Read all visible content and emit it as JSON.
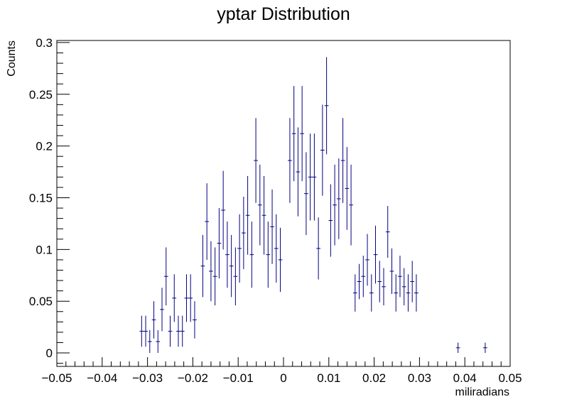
{
  "chart_data": {
    "type": "scatter",
    "title": "yptar Distribution",
    "xlabel": "miliradians",
    "ylabel": "Counts",
    "xlim": [
      -0.05,
      0.05
    ],
    "ylim": [
      -0.013,
      0.302
    ],
    "x_ticks": [
      -0.05,
      -0.04,
      -0.03,
      -0.02,
      -0.01,
      0,
      0.01,
      0.02,
      0.03,
      0.04,
      0.05
    ],
    "x_tick_labels": [
      "−0.05",
      "−0.04",
      "−0.03",
      "−0.02",
      "−0.01",
      "0",
      "0.01",
      "0.02",
      "0.03",
      "0.04",
      "0.05"
    ],
    "y_ticks": [
      0,
      0.05,
      0.1,
      0.15,
      0.2,
      0.25,
      0.3
    ],
    "y_tick_labels": [
      "0",
      "0.05",
      "0.1",
      "0.15",
      "0.2",
      "0.25",
      "0.3"
    ],
    "grid": false,
    "marker_color": "#000080",
    "bin_half_width": 0.00045,
    "series": [
      {
        "points": [
          {
            "x": -0.0313,
            "y": 0.021,
            "err": 0.015
          },
          {
            "x": -0.0304,
            "y": 0.021,
            "err": 0.015
          },
          {
            "x": -0.0295,
            "y": 0.011,
            "err": 0.011
          },
          {
            "x": -0.0286,
            "y": 0.032,
            "err": 0.018
          },
          {
            "x": -0.0277,
            "y": 0.011,
            "err": 0.011
          },
          {
            "x": -0.0268,
            "y": 0.042,
            "err": 0.021
          },
          {
            "x": -0.0259,
            "y": 0.074,
            "err": 0.028
          },
          {
            "x": -0.025,
            "y": 0.021,
            "err": 0.015
          },
          {
            "x": -0.0241,
            "y": 0.053,
            "err": 0.023
          },
          {
            "x": -0.0232,
            "y": 0.021,
            "err": 0.015
          },
          {
            "x": -0.0223,
            "y": 0.021,
            "err": 0.015
          },
          {
            "x": -0.0214,
            "y": 0.053,
            "err": 0.023
          },
          {
            "x": -0.0205,
            "y": 0.053,
            "err": 0.023
          },
          {
            "x": -0.0196,
            "y": 0.032,
            "err": 0.018
          },
          {
            "x": -0.0178,
            "y": 0.084,
            "err": 0.03
          },
          {
            "x": -0.0169,
            "y": 0.127,
            "err": 0.037
          },
          {
            "x": -0.016,
            "y": 0.079,
            "err": 0.029
          },
          {
            "x": -0.0151,
            "y": 0.074,
            "err": 0.028
          },
          {
            "x": -0.0142,
            "y": 0.106,
            "err": 0.034
          },
          {
            "x": -0.0133,
            "y": 0.138,
            "err": 0.038
          },
          {
            "x": -0.0124,
            "y": 0.095,
            "err": 0.032
          },
          {
            "x": -0.0115,
            "y": 0.084,
            "err": 0.03
          },
          {
            "x": -0.0106,
            "y": 0.074,
            "err": 0.028
          },
          {
            "x": -0.0097,
            "y": 0.101,
            "err": 0.033
          },
          {
            "x": -0.0088,
            "y": 0.116,
            "err": 0.035
          },
          {
            "x": -0.0079,
            "y": 0.133,
            "err": 0.038
          },
          {
            "x": -0.007,
            "y": 0.095,
            "err": 0.032
          },
          {
            "x": -0.0061,
            "y": 0.186,
            "err": 0.041
          },
          {
            "x": -0.0052,
            "y": 0.143,
            "err": 0.039
          },
          {
            "x": -0.0043,
            "y": 0.133,
            "err": 0.038
          },
          {
            "x": -0.0034,
            "y": 0.095,
            "err": 0.032
          },
          {
            "x": -0.0025,
            "y": 0.122,
            "err": 0.036
          },
          {
            "x": -0.0016,
            "y": 0.101,
            "err": 0.033
          },
          {
            "x": -0.0007,
            "y": 0.09,
            "err": 0.031
          },
          {
            "x": 0.0014,
            "y": 0.186,
            "err": 0.041
          },
          {
            "x": 0.0023,
            "y": 0.212,
            "err": 0.046
          },
          {
            "x": 0.0032,
            "y": 0.175,
            "err": 0.043
          },
          {
            "x": 0.0041,
            "y": 0.212,
            "err": 0.046
          },
          {
            "x": 0.005,
            "y": 0.154,
            "err": 0.04
          },
          {
            "x": 0.0059,
            "y": 0.17,
            "err": 0.042
          },
          {
            "x": 0.0068,
            "y": 0.17,
            "err": 0.042
          },
          {
            "x": 0.0077,
            "y": 0.101,
            "err": 0.03
          },
          {
            "x": 0.0086,
            "y": 0.196,
            "err": 0.044
          },
          {
            "x": 0.0095,
            "y": 0.239,
            "err": 0.047
          },
          {
            "x": 0.0104,
            "y": 0.128,
            "err": 0.035
          },
          {
            "x": 0.0113,
            "y": 0.143,
            "err": 0.039
          },
          {
            "x": 0.0122,
            "y": 0.149,
            "err": 0.039
          },
          {
            "x": 0.0131,
            "y": 0.186,
            "err": 0.041
          },
          {
            "x": 0.014,
            "y": 0.159,
            "err": 0.04
          },
          {
            "x": 0.0149,
            "y": 0.143,
            "err": 0.039
          },
          {
            "x": 0.0158,
            "y": 0.058,
            "err": 0.018
          },
          {
            "x": 0.0167,
            "y": 0.069,
            "err": 0.017
          },
          {
            "x": 0.0176,
            "y": 0.074,
            "err": 0.02
          },
          {
            "x": 0.0185,
            "y": 0.09,
            "err": 0.025
          },
          {
            "x": 0.0194,
            "y": 0.058,
            "err": 0.018
          },
          {
            "x": 0.0203,
            "y": 0.095,
            "err": 0.028
          },
          {
            "x": 0.0212,
            "y": 0.069,
            "err": 0.02
          },
          {
            "x": 0.0221,
            "y": 0.064,
            "err": 0.018
          },
          {
            "x": 0.023,
            "y": 0.117,
            "err": 0.025
          },
          {
            "x": 0.0239,
            "y": 0.079,
            "err": 0.022
          },
          {
            "x": 0.0248,
            "y": 0.058,
            "err": 0.018
          },
          {
            "x": 0.0257,
            "y": 0.074,
            "err": 0.02
          },
          {
            "x": 0.0266,
            "y": 0.064,
            "err": 0.018
          },
          {
            "x": 0.0275,
            "y": 0.058,
            "err": 0.018
          },
          {
            "x": 0.0284,
            "y": 0.069,
            "err": 0.02
          },
          {
            "x": 0.0293,
            "y": 0.058,
            "err": 0.018
          },
          {
            "x": 0.0385,
            "y": 0.005,
            "err": 0.005
          },
          {
            "x": 0.0445,
            "y": 0.005,
            "err": 0.005
          }
        ]
      }
    ]
  }
}
